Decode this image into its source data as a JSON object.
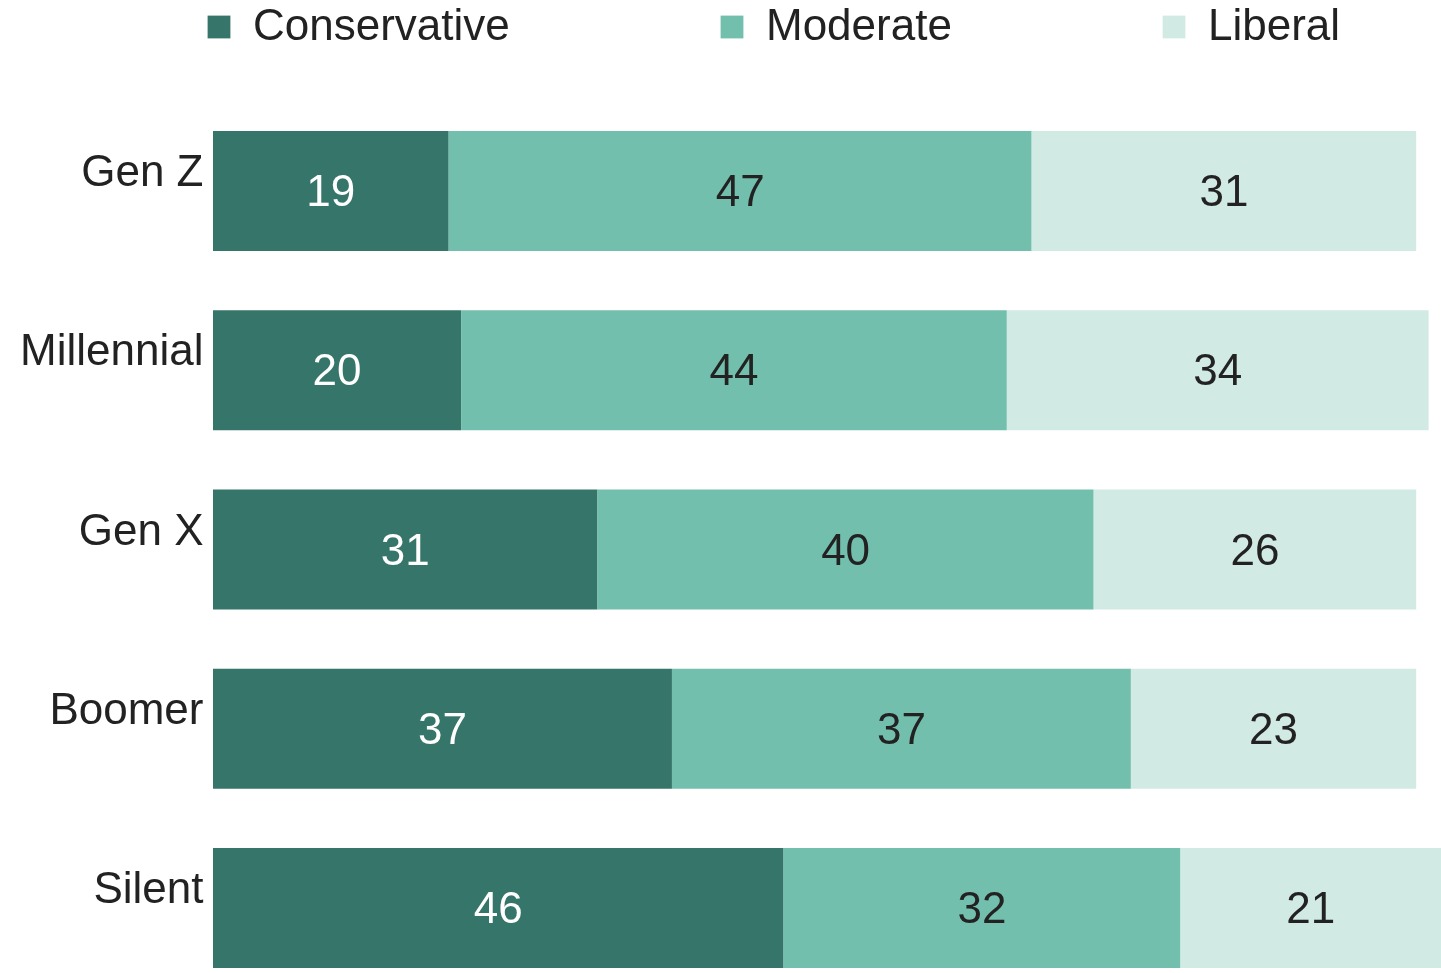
{
  "chart_data": {
    "type": "bar",
    "orientation": "horizontal",
    "stacked": true,
    "data_labels": true,
    "legend": "top",
    "grid": false,
    "categories": [
      "Gen Z",
      "Millennial",
      "Gen X",
      "Boomer",
      "Silent"
    ],
    "series": [
      {
        "name": "Conservative",
        "color": "#35756a",
        "values": [
          19,
          20,
          31,
          37,
          46
        ]
      },
      {
        "name": "Moderate",
        "color": "#73bfae",
        "values": [
          47,
          44,
          40,
          37,
          32
        ]
      },
      {
        "name": "Liberal",
        "color": "#d2eae4",
        "values": [
          31,
          34,
          26,
          23,
          21
        ]
      }
    ]
  }
}
